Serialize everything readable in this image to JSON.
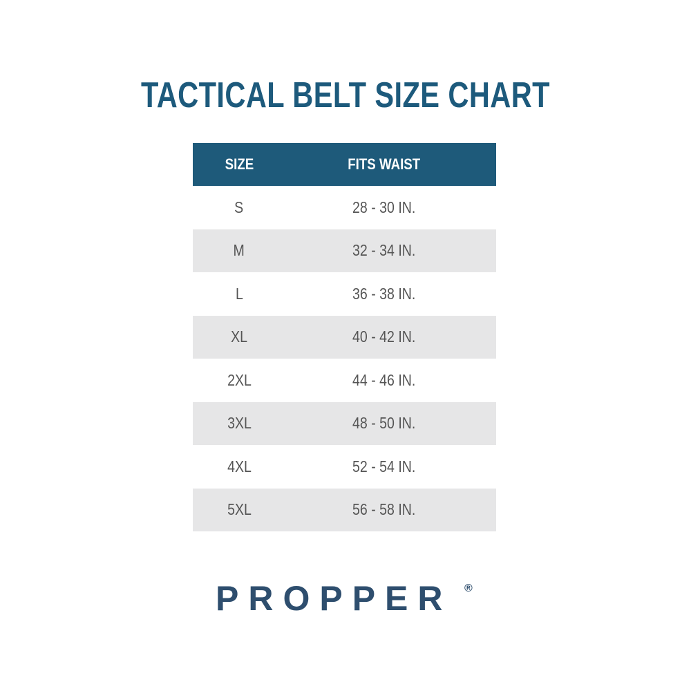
{
  "title": "TACTICAL BELT SIZE CHART",
  "table": {
    "headers": [
      "SIZE",
      "FITS WAIST"
    ],
    "rows": [
      [
        "S",
        "28 - 30 IN."
      ],
      [
        "M",
        "32 - 34 IN."
      ],
      [
        "L",
        "36 - 38 IN."
      ],
      [
        "XL",
        "40 - 42 IN."
      ],
      [
        "2XL",
        "44 - 46 IN."
      ],
      [
        "3XL",
        "48 - 50 IN."
      ],
      [
        "4XL",
        "52 - 54 IN."
      ],
      [
        "5XL",
        "56 - 58 IN."
      ]
    ]
  },
  "logo": {
    "text": "PROPPER",
    "mark": "®"
  },
  "colors": {
    "title": "#1d5a7c",
    "header_bg": "#1e5a7a",
    "alt_row": "#e6e6e7",
    "logo": "#2e4e6e"
  }
}
